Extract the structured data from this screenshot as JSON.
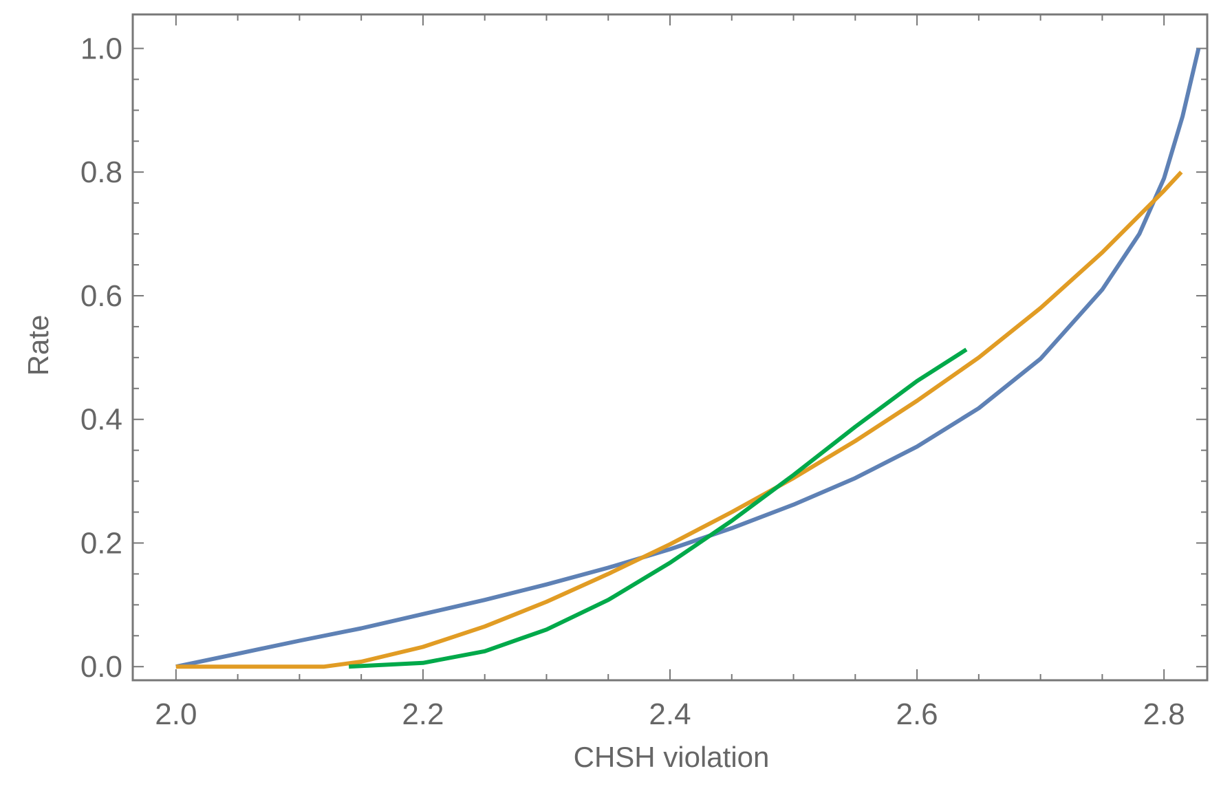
{
  "chart_data": {
    "type": "line",
    "title": "",
    "xlabel": "CHSH violation",
    "ylabel": "Rate",
    "xlim": [
      1.965,
      2.835
    ],
    "ylim": [
      -0.022,
      1.055
    ],
    "x_ticks": [
      "2.0",
      "2.2",
      "2.4",
      "2.6",
      "2.8"
    ],
    "x_tick_values": [
      2.0,
      2.2,
      2.4,
      2.6,
      2.8
    ],
    "y_ticks": [
      "0.0",
      "0.2",
      "0.4",
      "0.6",
      "0.8",
      "1.0"
    ],
    "y_tick_values": [
      0.0,
      0.2,
      0.4,
      0.6,
      0.8,
      1.0
    ],
    "grid": false,
    "frame": "box",
    "series": [
      {
        "color": "#5E81B5",
        "points": [
          [
            2.0,
            0.0
          ],
          [
            2.05,
            0.021
          ],
          [
            2.1,
            0.042
          ],
          [
            2.15,
            0.062
          ],
          [
            2.2,
            0.085
          ],
          [
            2.25,
            0.108
          ],
          [
            2.3,
            0.133
          ],
          [
            2.35,
            0.16
          ],
          [
            2.4,
            0.19
          ],
          [
            2.45,
            0.224
          ],
          [
            2.5,
            0.262
          ],
          [
            2.55,
            0.305
          ],
          [
            2.6,
            0.356
          ],
          [
            2.65,
            0.418
          ],
          [
            2.7,
            0.498
          ],
          [
            2.75,
            0.61
          ],
          [
            2.78,
            0.7
          ],
          [
            2.8,
            0.79
          ],
          [
            2.815,
            0.89
          ],
          [
            2.828,
            1.0
          ]
        ]
      },
      {
        "color": "#E19C24",
        "points": [
          [
            2.0,
            0.0
          ],
          [
            2.05,
            0.0
          ],
          [
            2.1,
            0.0
          ],
          [
            2.12,
            0.0
          ],
          [
            2.15,
            0.008
          ],
          [
            2.2,
            0.032
          ],
          [
            2.25,
            0.065
          ],
          [
            2.3,
            0.105
          ],
          [
            2.35,
            0.15
          ],
          [
            2.4,
            0.198
          ],
          [
            2.45,
            0.25
          ],
          [
            2.5,
            0.305
          ],
          [
            2.55,
            0.365
          ],
          [
            2.6,
            0.43
          ],
          [
            2.65,
            0.5
          ],
          [
            2.7,
            0.58
          ],
          [
            2.75,
            0.67
          ],
          [
            2.8,
            0.77
          ],
          [
            2.814,
            0.8
          ]
        ]
      },
      {
        "color": "#00A94A",
        "points": [
          [
            2.14,
            0.0
          ],
          [
            2.2,
            0.006
          ],
          [
            2.25,
            0.025
          ],
          [
            2.3,
            0.06
          ],
          [
            2.35,
            0.108
          ],
          [
            2.4,
            0.168
          ],
          [
            2.45,
            0.236
          ],
          [
            2.5,
            0.31
          ],
          [
            2.55,
            0.388
          ],
          [
            2.6,
            0.462
          ],
          [
            2.64,
            0.513
          ]
        ]
      }
    ]
  }
}
